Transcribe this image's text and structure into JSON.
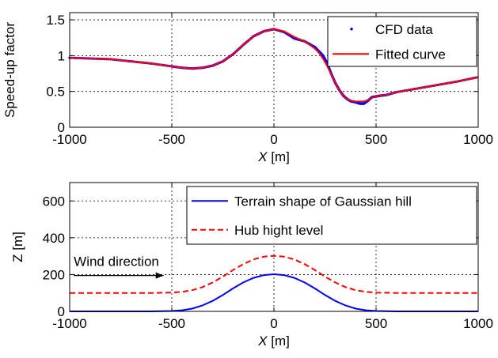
{
  "chart_data": [
    {
      "type": "line",
      "xlabel_var": "X",
      "xlabel_unit": " [m]",
      "ylabel": "Speed-up factor",
      "xlim": [
        -1000,
        1000
      ],
      "ylim": [
        0,
        1.6
      ],
      "xticks": [
        -1000,
        -500,
        0,
        500,
        1000
      ],
      "yticks": [
        0,
        0.5,
        1,
        1.5
      ],
      "ytick_labels": [
        "0",
        "0.5",
        "1",
        "1.5"
      ],
      "grid": true,
      "legend_position": "top-right",
      "series": [
        {
          "name": "CFD data",
          "color": "#0000ff",
          "marker": "dot",
          "x": [
            -1000,
            -900,
            -800,
            -700,
            -600,
            -500,
            -450,
            -400,
            -350,
            -300,
            -250,
            -200,
            -150,
            -100,
            -50,
            0,
            50,
            100,
            150,
            200,
            220,
            240,
            260,
            280,
            300,
            320,
            340,
            360,
            380,
            400,
            420,
            440,
            460,
            480,
            500,
            520,
            550,
            600,
            700,
            800,
            900,
            1000
          ],
          "y": [
            0.97,
            0.96,
            0.95,
            0.92,
            0.89,
            0.85,
            0.83,
            0.82,
            0.83,
            0.86,
            0.92,
            1.02,
            1.15,
            1.27,
            1.34,
            1.37,
            1.33,
            1.24,
            1.2,
            1.12,
            1.06,
            1.0,
            0.9,
            0.75,
            0.62,
            0.52,
            0.44,
            0.39,
            0.36,
            0.35,
            0.33,
            0.33,
            0.37,
            0.42,
            0.43,
            0.44,
            0.45,
            0.49,
            0.54,
            0.59,
            0.64,
            0.7
          ]
        },
        {
          "name": "Fitted curve",
          "color": "#ff0000",
          "marker": "line",
          "x": [
            -1000,
            -900,
            -800,
            -700,
            -600,
            -500,
            -450,
            -400,
            -350,
            -300,
            -250,
            -200,
            -150,
            -100,
            -50,
            0,
            50,
            100,
            150,
            200,
            220,
            240,
            260,
            280,
            300,
            320,
            340,
            360,
            380,
            400,
            420,
            440,
            460,
            480,
            500,
            520,
            550,
            600,
            700,
            800,
            900,
            1000
          ],
          "y": [
            0.97,
            0.96,
            0.95,
            0.92,
            0.89,
            0.85,
            0.83,
            0.82,
            0.83,
            0.86,
            0.92,
            1.02,
            1.15,
            1.27,
            1.34,
            1.37,
            1.34,
            1.26,
            1.2,
            1.1,
            1.04,
            0.96,
            0.86,
            0.74,
            0.62,
            0.52,
            0.44,
            0.39,
            0.37,
            0.36,
            0.36,
            0.36,
            0.38,
            0.41,
            0.43,
            0.44,
            0.45,
            0.49,
            0.54,
            0.59,
            0.64,
            0.7
          ]
        }
      ]
    },
    {
      "type": "line",
      "xlabel_var": "X",
      "xlabel_unit": " [m]",
      "ylabel": "Z [m]",
      "xlim": [
        -1000,
        1000
      ],
      "ylim": [
        0,
        700
      ],
      "xticks": [
        -1000,
        -500,
        0,
        500,
        1000
      ],
      "yticks": [
        0,
        200,
        400,
        600
      ],
      "ytick_labels": [
        "0",
        "200",
        "400",
        "600"
      ],
      "grid": true,
      "legend_position": "top-right",
      "annotation": {
        "text": "Wind direction",
        "arrow_from": [
          -980,
          195
        ],
        "arrow_to": [
          -540,
          195
        ]
      },
      "series": [
        {
          "name": "Terrain shape of Gaussian hill",
          "color": "#0000ff",
          "style": "solid",
          "x": [
            -1000,
            -600,
            -500,
            -450,
            -400,
            -350,
            -300,
            -250,
            -200,
            -150,
            -100,
            -50,
            0,
            50,
            100,
            150,
            200,
            250,
            300,
            350,
            400,
            450,
            500,
            600,
            1000
          ],
          "y": [
            0,
            0,
            2,
            6,
            15,
            32,
            57,
            89,
            125,
            157,
            182,
            197,
            202,
            197,
            182,
            157,
            125,
            89,
            57,
            32,
            15,
            6,
            2,
            0,
            0
          ]
        },
        {
          "name": "Hub hight level",
          "color": "#ff0000",
          "style": "dashed",
          "x": [
            -1000,
            -600,
            -500,
            -450,
            -400,
            -350,
            -300,
            -250,
            -200,
            -150,
            -100,
            -50,
            0,
            50,
            100,
            150,
            200,
            250,
            300,
            350,
            400,
            450,
            500,
            600,
            1000
          ],
          "y": [
            100,
            100,
            102,
            106,
            115,
            132,
            157,
            189,
            225,
            257,
            282,
            297,
            302,
            297,
            282,
            257,
            225,
            189,
            157,
            132,
            115,
            106,
            102,
            100,
            100
          ]
        }
      ]
    }
  ]
}
